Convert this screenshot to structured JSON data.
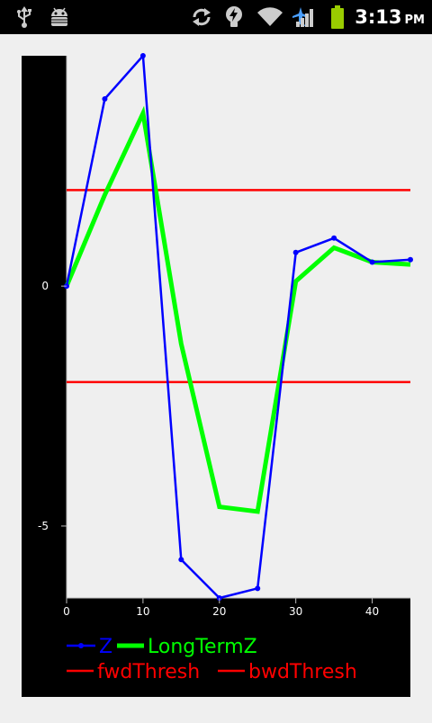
{
  "status_bar": {
    "time": "3:13",
    "ampm": "PM",
    "icons": [
      "usb-icon",
      "android-debug-icon",
      "sync-icon",
      "power-icon",
      "wifi-icon",
      "airplane-icon",
      "signal-icon",
      "battery-icon"
    ]
  },
  "colors": {
    "background": "#efefef",
    "plot_background": "#ffffff",
    "outer_panel": "#000000",
    "z": "#0000ff",
    "long_term_z": "#00ff00",
    "threshold": "#ff0000"
  },
  "chart_data": {
    "type": "line",
    "title": "",
    "xlabel": "",
    "ylabel": "",
    "xlim": [
      0,
      45
    ],
    "ylim": [
      -6.5,
      4.8
    ],
    "x_ticks": [
      0,
      10,
      20,
      30,
      40
    ],
    "x_tick_labels": [
      "0",
      "10",
      "20",
      "30",
      "40"
    ],
    "y_ticks": [
      0,
      -5
    ],
    "y_tick_labels": [
      "0",
      "-5"
    ],
    "grid": false,
    "legend_position": "bottom",
    "series": [
      {
        "name": "Z",
        "color": "#0000ff",
        "markers": true,
        "x": [
          0,
          5,
          10,
          15,
          20,
          25,
          30,
          35,
          40,
          45
        ],
        "y": [
          0.0,
          3.9,
          4.8,
          -5.7,
          -6.5,
          -6.3,
          0.7,
          1.0,
          0.5,
          0.55
        ]
      },
      {
        "name": "LongTermZ",
        "color": "#00ff00",
        "markers": false,
        "x": [
          0,
          5,
          10,
          15,
          20,
          25,
          30,
          35,
          40,
          45
        ],
        "y": [
          0.0,
          1.9,
          3.6,
          -1.2,
          -4.6,
          -4.7,
          0.1,
          0.8,
          0.5,
          0.45
        ]
      },
      {
        "name": "fwdThresh",
        "color": "#ff0000",
        "markers": false,
        "x": [
          0,
          45
        ],
        "y": [
          2.0,
          2.0
        ]
      },
      {
        "name": "bwdThresh",
        "color": "#ff0000",
        "markers": false,
        "x": [
          0,
          45
        ],
        "y": [
          -2.0,
          -2.0
        ]
      }
    ]
  }
}
